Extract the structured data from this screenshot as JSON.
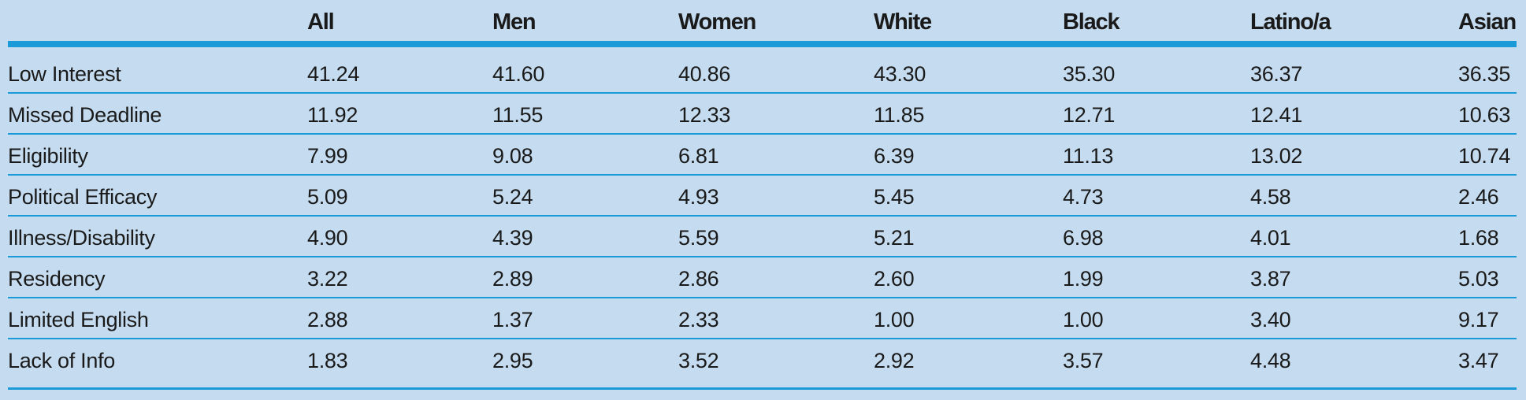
{
  "table": {
    "header": [
      "",
      "All",
      "Men",
      "Women",
      "White",
      "Black",
      "Latino/a",
      "Asian"
    ],
    "rows": [
      [
        "Low Interest",
        "41.24",
        "41.60",
        "40.86",
        "43.30",
        "35.30",
        "36.37",
        "36.35"
      ],
      [
        "Missed Deadline",
        "11.92",
        "11.55",
        "12.33",
        "11.85",
        "12.71",
        "12.41",
        "10.63"
      ],
      [
        "Eligibility",
        "7.99",
        "9.08",
        "6.81",
        "6.39",
        "11.13",
        "13.02",
        "10.74"
      ],
      [
        "Political Efficacy",
        "5.09",
        "5.24",
        "4.93",
        "5.45",
        "4.73",
        "4.58",
        "2.46"
      ],
      [
        "Illness/Disability",
        "4.90",
        "4.39",
        "5.59",
        "5.21",
        "6.98",
        "4.01",
        "1.68"
      ],
      [
        "Residency",
        "3.22",
        "2.89",
        "2.86",
        "2.60",
        "1.99",
        "3.87",
        "5.03"
      ],
      [
        "Limited English",
        "2.88",
        "1.37",
        "2.33",
        "1.00",
        "1.00",
        "3.40",
        "9.17"
      ],
      [
        "Lack of Info",
        "1.83",
        "2.95",
        "3.52",
        "2.92",
        "3.57",
        "4.48",
        "3.47"
      ]
    ]
  }
}
